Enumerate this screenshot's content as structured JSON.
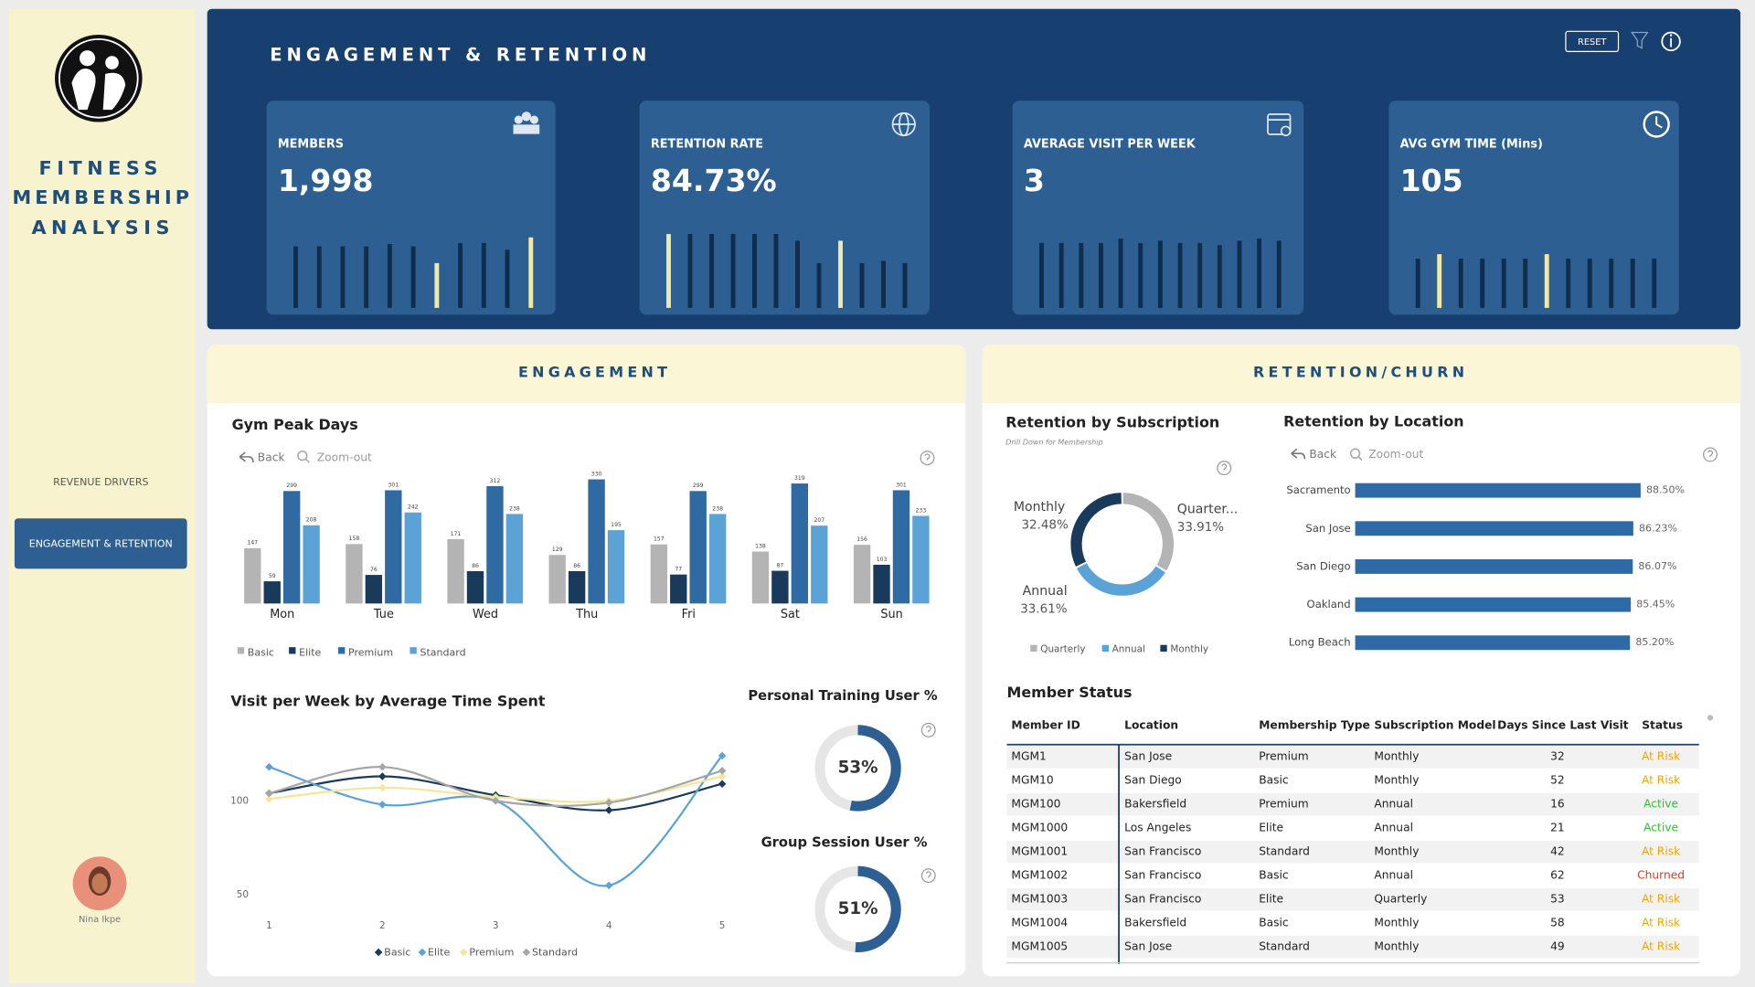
{
  "sidebar": {
    "title": [
      "FITNESS",
      "MEMBERSHIP",
      "ANALYSIS"
    ],
    "nav": [
      "REVENUE DRIVERS",
      "ENGAGEMENT & RETENTION"
    ],
    "user": "Nina Ikpe"
  },
  "header": {
    "title": "ENGAGEMENT & RETENTION",
    "reset": "RESET",
    "spark_color": "#0f2d4d",
    "highlight_color": "#f1e9a8"
  },
  "kpis": [
    {
      "label": "MEMBERS",
      "value": "1,998",
      "spark": [
        55,
        55,
        55,
        55,
        57,
        55,
        40,
        58,
        58,
        52,
        63
      ],
      "highlight": [
        6,
        10
      ]
    },
    {
      "label": "RETENTION RATE",
      "value": "84.73%",
      "spark": [
        66,
        66,
        66,
        66,
        66,
        66,
        60,
        40,
        60,
        40,
        42,
        40
      ],
      "highlight": [
        0,
        8
      ]
    },
    {
      "label": "AVERAGE VISIT PER WEEK",
      "value": "3",
      "spark": [
        58,
        58,
        58,
        58,
        62,
        58,
        60,
        58,
        58,
        56,
        60,
        62,
        60
      ],
      "highlight": []
    },
    {
      "label": "AVG GYM TIME (Mins)",
      "value": "105",
      "spark": [
        44,
        48,
        44,
        44,
        44,
        44,
        48,
        44,
        44,
        44,
        44,
        44
      ],
      "highlight": [
        1,
        6
      ]
    }
  ],
  "panels": [
    "ENGAGEMENT",
    "RETENTION/CHURN"
  ],
  "controls": [
    "Back",
    "Zoom-out"
  ],
  "chart_data": [
    {
      "type": "bar",
      "title": "Gym Peak Days",
      "categories": [
        "Mon",
        "Tue",
        "Wed",
        "Thu",
        "Fri",
        "Sat",
        "Sun"
      ],
      "series": [
        {
          "name": "Basic",
          "color": "#b4b4b4",
          "values": [
            147,
            158,
            171,
            129,
            157,
            138,
            156
          ]
        },
        {
          "name": "Elite",
          "color": "#1a3a5c",
          "values": [
            59,
            76,
            86,
            86,
            77,
            87,
            103
          ]
        },
        {
          "name": "Premium",
          "color": "#2f6aa3",
          "values": [
            299,
            301,
            312,
            330,
            299,
            319,
            301
          ]
        },
        {
          "name": "Standard",
          "color": "#5ba3d6",
          "values": [
            208,
            242,
            238,
            195,
            238,
            207,
            233
          ]
        }
      ]
    },
    {
      "type": "pie",
      "hole": true,
      "title": "Retention by Subscription",
      "subtitle": "Drill Down for Membership",
      "categories": [
        "Quarterly",
        "Annual",
        "Monthly"
      ],
      "labels": [
        "Quarter...",
        "Annual",
        "Monthly"
      ],
      "values": [
        33.91,
        33.61,
        32.48
      ],
      "value_labels": [
        "33.91%",
        "33.61%",
        "32.48%"
      ],
      "colors": [
        "#b4b4b4",
        "#5ba3d6",
        "#1a3a5c"
      ]
    },
    {
      "type": "bar",
      "orientation": "horizontal",
      "title": "Retention by Location",
      "color": "#2e6aa5",
      "categories": [
        "Sacramento",
        "San Jose",
        "San Diego",
        "Oakland",
        "Long Beach"
      ],
      "values": [
        88.5,
        86.23,
        86.07,
        85.45,
        85.2
      ],
      "value_labels": [
        "88.50%",
        "86.23%",
        "86.07%",
        "85.45%",
        "85.20%"
      ]
    },
    {
      "type": "line",
      "title": "Visit per Week by Average Time Spent",
      "x": [
        1,
        2,
        3,
        4,
        5
      ],
      "xlim": [
        0.75,
        5.15
      ],
      "xticks": [
        1,
        2,
        3,
        4,
        5
      ],
      "ylim": [
        40,
        140
      ],
      "yticks": [
        50,
        100
      ],
      "series": [
        {
          "name": "Basic",
          "color": "#1a3a5c",
          "values": [
            104,
            113,
            103,
            95,
            109
          ]
        },
        {
          "name": "Elite",
          "color": "#5ba3d6",
          "values": [
            118,
            98,
            100,
            55,
            124
          ]
        },
        {
          "name": "Premium",
          "color": "#f3e79a",
          "values": [
            101,
            107,
            102,
            100,
            113
          ]
        },
        {
          "name": "Standard",
          "color": "#a6a6a6",
          "values": [
            104,
            118,
            100,
            99,
            116
          ]
        }
      ]
    },
    {
      "type": "gauge",
      "title": "Personal Training User %",
      "values": [
        53
      ],
      "value_labels": [
        "53%"
      ],
      "color": "#2e5f92"
    },
    {
      "type": "gauge",
      "title": "Group Session User %",
      "values": [
        51
      ],
      "value_labels": [
        "51%"
      ],
      "color": "#2e5f92"
    }
  ],
  "table": {
    "title": "Member Status",
    "columns": [
      "Member ID",
      "Location",
      "Membership Type",
      "Subscription Model",
      "Days Since Last Visit",
      "Status"
    ],
    "rows": [
      [
        "MGM1",
        "San Jose",
        "Premium",
        "Monthly",
        32,
        "At Risk"
      ],
      [
        "MGM10",
        "San Diego",
        "Basic",
        "Monthly",
        52,
        "At Risk"
      ],
      [
        "MGM100",
        "Bakersfield",
        "Premium",
        "Annual",
        16,
        "Active"
      ],
      [
        "MGM1000",
        "Los Angeles",
        "Elite",
        "Annual",
        21,
        "Active"
      ],
      [
        "MGM1001",
        "San Francisco",
        "Standard",
        "Monthly",
        42,
        "At Risk"
      ],
      [
        "MGM1002",
        "San Francisco",
        "Basic",
        "Annual",
        62,
        "Churned"
      ],
      [
        "MGM1003",
        "San Francisco",
        "Elite",
        "Quarterly",
        53,
        "At Risk"
      ],
      [
        "MGM1004",
        "Bakersfield",
        "Basic",
        "Monthly",
        58,
        "At Risk"
      ],
      [
        "MGM1005",
        "San Jose",
        "Standard",
        "Monthly",
        49,
        "At Risk"
      ]
    ],
    "status_colors": {
      "At Risk": "#f0a500",
      "Active": "#2bc32b",
      "Churned": "#e03a1a"
    }
  }
}
